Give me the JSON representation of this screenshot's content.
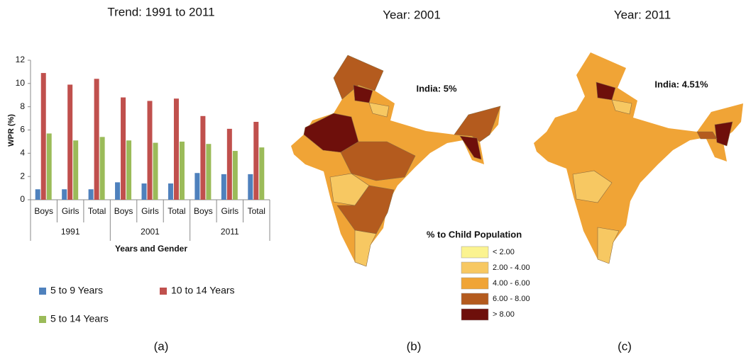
{
  "chart_data": {
    "type": "bar",
    "title": "Trend: 1991 to 2011",
    "y_label": "WPR (%)",
    "x_label": "Years and Gender",
    "categories": [
      "Boys",
      "Girls",
      "Total",
      "Boys",
      "Girls",
      "Total",
      "Boys",
      "Girls",
      "Total"
    ],
    "groups": [
      "1991",
      "2001",
      "2011"
    ],
    "series": [
      {
        "name": "5 to 9 Years",
        "color": "#4f81bd",
        "values": [
          0.9,
          0.9,
          0.9,
          1.5,
          1.4,
          1.4,
          2.3,
          2.2,
          2.2
        ]
      },
      {
        "name": "10 to 14 Years",
        "color": "#c0504d",
        "values": [
          10.9,
          9.9,
          10.4,
          8.8,
          8.5,
          8.7,
          7.2,
          6.1,
          6.7
        ]
      },
      {
        "name": "5 to 14 Years",
        "color": "#9bbb59",
        "values": [
          5.7,
          5.1,
          5.4,
          5.1,
          4.9,
          5.0,
          4.8,
          4.2,
          4.5
        ]
      }
    ],
    "ylim": [
      0,
      12
    ],
    "yticks": [
      0,
      2,
      4,
      6,
      8,
      10,
      12
    ]
  },
  "maps": [
    {
      "title": "Year: 2001",
      "annotation": "India: 5%"
    },
    {
      "title": "Year: 2011",
      "annotation": "India: 4.51%"
    }
  ],
  "map_legend": {
    "title": "% to Child Population",
    "items": [
      {
        "label": "< 2.00",
        "color": "#fbf390"
      },
      {
        "label": "2.00 - 4.00",
        "color": "#f7c862"
      },
      {
        "label": "4.00 - 6.00",
        "color": "#f0a436"
      },
      {
        "label": "6.00 - 8.00",
        "color": "#b45b1e"
      },
      {
        "label": "> 8.00",
        "color": "#6e0f0b"
      }
    ]
  },
  "panel_labels": [
    "(a)",
    "(b)",
    "(c)"
  ]
}
